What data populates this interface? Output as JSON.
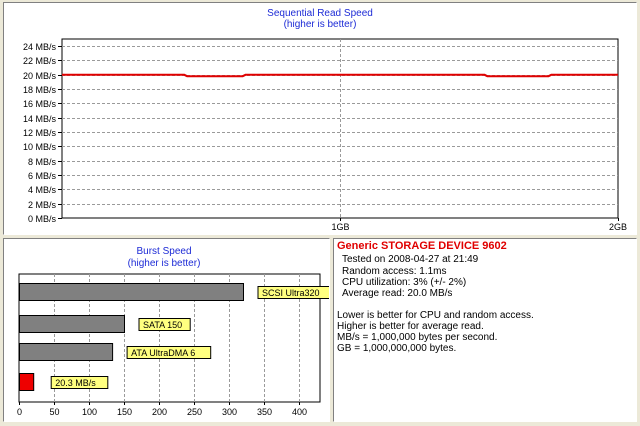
{
  "sequential": {
    "title": "Sequential Read Speed",
    "subtitle": "(higher is better)",
    "y_ticks": [
      "0 MB/s",
      "2 MB/s",
      "4 MB/s",
      "6 MB/s",
      "8 MB/s",
      "10 MB/s",
      "12 MB/s",
      "14 MB/s",
      "16 MB/s",
      "18 MB/s",
      "20 MB/s",
      "22 MB/s",
      "24 MB/s"
    ],
    "x_ticks": [
      "1GB",
      "2GB"
    ],
    "line_color": "#e00000"
  },
  "burst": {
    "title": "Burst Speed",
    "subtitle": "(higher is better)",
    "x_ticks": [
      "0",
      "50",
      "100",
      "150",
      "200",
      "250",
      "300",
      "350",
      "400"
    ],
    "bar_color_reference": "#808080",
    "bar_color_device": "#ee0000",
    "label_bg": "#ffff80"
  },
  "info": {
    "device_name": "Generic STORAGE DEVICE 9602",
    "tested_on": "Tested on 2008-04-27 at 21:49",
    "random_access": "Random access: 1.1ms",
    "cpu_utilization": "CPU utilization: 3% (+/- 2%)",
    "average_read": "Average read: 20.0 MB/s",
    "note_lower": "Lower is better for CPU and random access.",
    "note_higher": "Higher is better for average read.",
    "note_mbs": "MB/s = 1,000,000 bytes per second.",
    "note_gb": "GB = 1,000,000,000 bytes."
  },
  "chart_data": [
    {
      "type": "line",
      "title": "Sequential Read Speed",
      "subtitle": "(higher is better)",
      "xlabel": "",
      "ylabel": "",
      "x_range_gb": [
        0,
        2
      ],
      "ylim": [
        0,
        25
      ],
      "x": [
        0,
        0.44,
        0.45,
        0.65,
        0.66,
        1.52,
        1.53,
        1.75,
        1.76,
        2.0
      ],
      "y": [
        20.0,
        20.0,
        19.8,
        19.8,
        20.0,
        20.0,
        19.8,
        19.8,
        20.0,
        20.0
      ],
      "grid": true,
      "legend": "none"
    },
    {
      "type": "bar",
      "orientation": "horizontal",
      "title": "Burst Speed",
      "subtitle": "(higher is better)",
      "xlim": [
        0,
        430
      ],
      "categories": [
        "SCSI Ultra320",
        "SATA 150",
        "ATA UltraDMA 6",
        "20.3 MB/s"
      ],
      "values": [
        320,
        150,
        133,
        20.3
      ],
      "grid": true,
      "legend": "none"
    }
  ]
}
